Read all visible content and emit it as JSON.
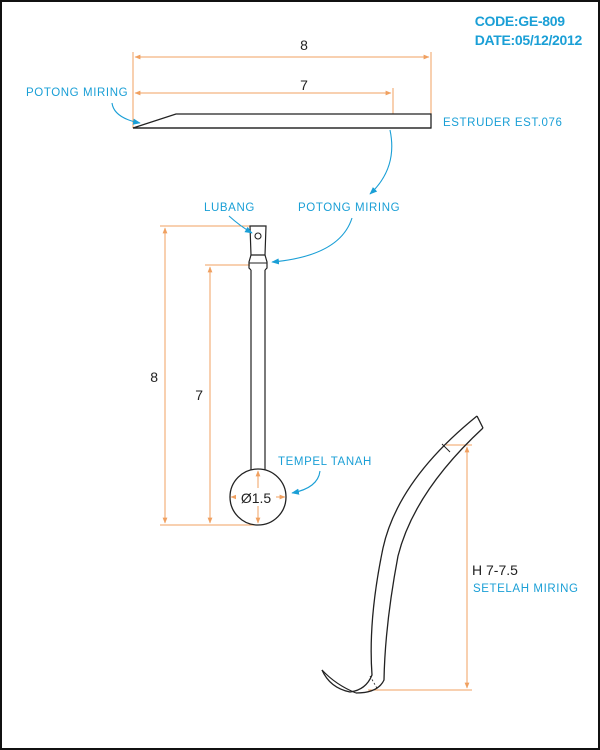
{
  "header": {
    "code": "CODE:GE-809",
    "date": "DATE:05/12/2012"
  },
  "top_view": {
    "dim_overall": "8",
    "dim_inner": "7",
    "label_cut": "POTONG MIRING",
    "label_material": "ESTRUDER EST.076"
  },
  "side_view": {
    "label_hole": "LUBANG",
    "label_cut": "POTONG MIRING",
    "dim_overall": "8",
    "dim_inner": "7",
    "label_glue": "TEMPEL TANAH",
    "diameter": "Ø1.5"
  },
  "bent_view": {
    "height": "H 7-7.5",
    "label_after": "SETELAH MIRING"
  },
  "colors": {
    "accent_blue": "#1a9fd6",
    "dimension_orange": "#f0a060",
    "outline": "#222222"
  }
}
